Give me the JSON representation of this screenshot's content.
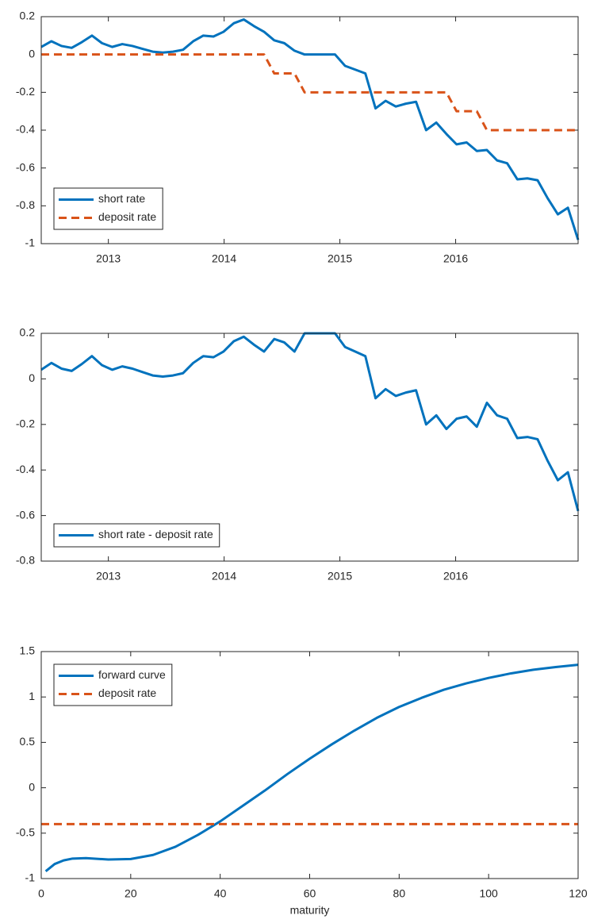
{
  "chart_data": [
    {
      "type": "line",
      "x": [
        2012.42,
        2012.508,
        2012.595,
        2012.683,
        2012.77,
        2012.858,
        2012.945,
        2013.033,
        2013.12,
        2013.208,
        2013.295,
        2013.383,
        2013.47,
        2013.558,
        2013.645,
        2013.733,
        2013.82,
        2013.908,
        2013.995,
        2014.083,
        2014.17,
        2014.258,
        2014.345,
        2014.433,
        2014.52,
        2014.608,
        2014.695,
        2014.783,
        2014.87,
        2014.958,
        2015.045,
        2015.133,
        2015.22,
        2015.308,
        2015.395,
        2015.483,
        2015.57,
        2015.658,
        2015.745,
        2015.833,
        2015.92,
        2016.008,
        2016.095,
        2016.183,
        2016.27,
        2016.358,
        2016.445,
        2016.533,
        2016.62,
        2016.708,
        2016.795,
        2016.883,
        2016.97,
        2017.058
      ],
      "series": [
        {
          "name": "short rate",
          "color": "#0072bd",
          "dash": false,
          "values": [
            0.04,
            0.07,
            0.045,
            0.035,
            0.065,
            0.1,
            0.06,
            0.04,
            0.055,
            0.045,
            0.03,
            0.015,
            0.01,
            0.015,
            0.025,
            0.07,
            0.1,
            0.095,
            0.12,
            0.165,
            0.185,
            0.15,
            0.12,
            0.075,
            0.06,
            0.02,
            0.0,
            0.0,
            0.0,
            0.0,
            -0.06,
            -0.08,
            -0.1,
            -0.285,
            -0.245,
            -0.275,
            -0.26,
            -0.25,
            -0.4,
            -0.36,
            -0.42,
            -0.475,
            -0.465,
            -0.51,
            -0.505,
            -0.56,
            -0.575,
            -0.66,
            -0.655,
            -0.665,
            -0.76,
            -0.845,
            -0.81,
            -0.98
          ]
        },
        {
          "name": "deposit rate",
          "color": "#d95319",
          "dash": true,
          "values": [
            0,
            0,
            0,
            0,
            0,
            0,
            0,
            0,
            0,
            0,
            0,
            0,
            0,
            0,
            0,
            0,
            0,
            0,
            0,
            0,
            0,
            0,
            0,
            -0.1,
            -0.1,
            -0.1,
            -0.2,
            -0.2,
            -0.2,
            -0.2,
            -0.2,
            -0.2,
            -0.2,
            -0.2,
            -0.2,
            -0.2,
            -0.2,
            -0.2,
            -0.2,
            -0.2,
            -0.2,
            -0.3,
            -0.3,
            -0.3,
            -0.4,
            -0.4,
            -0.4,
            -0.4,
            -0.4,
            -0.4,
            -0.4,
            -0.4,
            -0.4,
            -0.4
          ]
        }
      ],
      "xlim": [
        2012.42,
        2017.058
      ],
      "xticks": [
        2013,
        2014,
        2015,
        2016
      ],
      "ylim": [
        -1,
        0.2
      ],
      "yticks": [
        -1,
        -0.8,
        -0.6,
        -0.4,
        -0.2,
        0,
        0.2
      ],
      "legend": "southwest"
    },
    {
      "type": "line",
      "x": [
        2012.42,
        2012.508,
        2012.595,
        2012.683,
        2012.77,
        2012.858,
        2012.945,
        2013.033,
        2013.12,
        2013.208,
        2013.295,
        2013.383,
        2013.47,
        2013.558,
        2013.645,
        2013.733,
        2013.82,
        2013.908,
        2013.995,
        2014.083,
        2014.17,
        2014.258,
        2014.345,
        2014.433,
        2014.52,
        2014.608,
        2014.695,
        2014.783,
        2014.87,
        2014.958,
        2015.045,
        2015.133,
        2015.22,
        2015.308,
        2015.395,
        2015.483,
        2015.57,
        2015.658,
        2015.745,
        2015.833,
        2015.92,
        2016.008,
        2016.095,
        2016.183,
        2016.27,
        2016.358,
        2016.445,
        2016.533,
        2016.62,
        2016.708,
        2016.795,
        2016.883,
        2016.97,
        2017.058
      ],
      "series": [
        {
          "name": "short rate - deposit rate",
          "color": "#0072bd",
          "dash": false,
          "values": [
            0.04,
            0.07,
            0.045,
            0.035,
            0.065,
            0.1,
            0.06,
            0.04,
            0.055,
            0.045,
            0.03,
            0.015,
            0.01,
            0.015,
            0.025,
            0.07,
            0.1,
            0.095,
            0.12,
            0.165,
            0.185,
            0.15,
            0.12,
            0.175,
            0.16,
            0.12,
            0.2,
            0.2,
            0.2,
            0.2,
            0.14,
            0.12,
            0.1,
            -0.085,
            -0.045,
            -0.075,
            -0.06,
            -0.05,
            -0.2,
            -0.16,
            -0.22,
            -0.175,
            -0.165,
            -0.21,
            -0.105,
            -0.16,
            -0.175,
            -0.26,
            -0.255,
            -0.265,
            -0.36,
            -0.445,
            -0.41,
            -0.58
          ]
        }
      ],
      "xlim": [
        2012.42,
        2017.058
      ],
      "xticks": [
        2013,
        2014,
        2015,
        2016
      ],
      "ylim": [
        -0.8,
        0.2
      ],
      "yticks": [
        -0.8,
        -0.6,
        -0.4,
        -0.2,
        0,
        0.2
      ],
      "legend": "southwest"
    },
    {
      "type": "line",
      "xlabel": "maturity",
      "series": [
        {
          "name": "forward curve",
          "color": "#0072bd",
          "dash": false,
          "x": [
            1,
            3,
            5,
            7,
            10,
            15,
            20,
            25,
            30,
            35,
            40,
            45,
            50,
            55,
            60,
            65,
            70,
            75,
            80,
            85,
            90,
            95,
            100,
            105,
            110,
            115,
            120
          ],
          "values": [
            -0.92,
            -0.84,
            -0.8,
            -0.78,
            -0.775,
            -0.79,
            -0.785,
            -0.74,
            -0.65,
            -0.52,
            -0.37,
            -0.2,
            -0.03,
            0.15,
            0.32,
            0.48,
            0.63,
            0.77,
            0.89,
            0.99,
            1.08,
            1.15,
            1.21,
            1.26,
            1.3,
            1.33,
            1.355
          ]
        },
        {
          "name": "deposit rate",
          "color": "#d95319",
          "dash": true,
          "x": [
            0,
            120
          ],
          "values": [
            -0.4,
            -0.4
          ]
        }
      ],
      "xlim": [
        0,
        120
      ],
      "xticks": [
        0,
        20,
        40,
        60,
        80,
        100,
        120
      ],
      "ylim": [
        -1,
        1.5
      ],
      "yticks": [
        -1,
        -0.5,
        0,
        0.5,
        1,
        1.5
      ],
      "legend": "northwest"
    }
  ]
}
